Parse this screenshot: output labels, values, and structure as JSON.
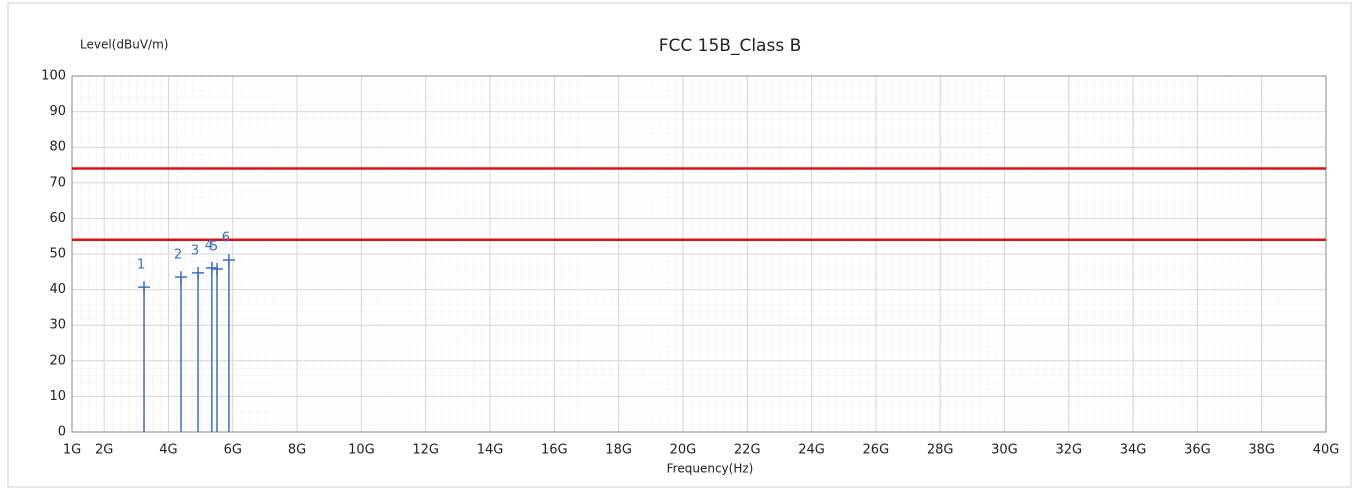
{
  "chart_data": {
    "type": "stem",
    "title": "FCC 15B_Class B",
    "y_label": "Level(dBuV/m)",
    "x_label": "Frequency(Hz)",
    "xlim": [
      1000000000,
      40000000000
    ],
    "xticks": [
      {
        "value": 1000000000,
        "label": "1G"
      },
      {
        "value": 2000000000,
        "label": "2G"
      },
      {
        "value": 4000000000,
        "label": "4G"
      },
      {
        "value": 6000000000,
        "label": "6G"
      },
      {
        "value": 8000000000,
        "label": "8G"
      },
      {
        "value": 10000000000,
        "label": "10G"
      },
      {
        "value": 12000000000,
        "label": "12G"
      },
      {
        "value": 14000000000,
        "label": "14G"
      },
      {
        "value": 16000000000,
        "label": "16G"
      },
      {
        "value": 18000000000,
        "label": "18G"
      },
      {
        "value": 20000000000,
        "label": "20G"
      },
      {
        "value": 22000000000,
        "label": "22G"
      },
      {
        "value": 24000000000,
        "label": "24G"
      },
      {
        "value": 26000000000,
        "label": "26G"
      },
      {
        "value": 28000000000,
        "label": "28G"
      },
      {
        "value": 30000000000,
        "label": "30G"
      },
      {
        "value": 32000000000,
        "label": "32G"
      },
      {
        "value": 34000000000,
        "label": "34G"
      },
      {
        "value": 36000000000,
        "label": "36G"
      },
      {
        "value": 38000000000,
        "label": "38G"
      },
      {
        "value": 40000000000,
        "label": "40G"
      }
    ],
    "ylim": [
      0,
      100
    ],
    "yticks": [
      0,
      10,
      20,
      30,
      40,
      50,
      60,
      70,
      80,
      90,
      100
    ],
    "grid": true,
    "series": [
      {
        "color": "#3a6fc4",
        "labels": [
          "1",
          "2",
          "3",
          "4",
          "5",
          "6"
        ],
        "x": [
          3240000000,
          4390000000,
          4920000000,
          5350000000,
          5510000000,
          5880000000
        ],
        "values": [
          40.7,
          43.5,
          44.7,
          46.1,
          45.8,
          48.3
        ]
      }
    ],
    "limit_lines": {
      "color": "#e01010",
      "values": [
        74,
        54
      ]
    }
  }
}
